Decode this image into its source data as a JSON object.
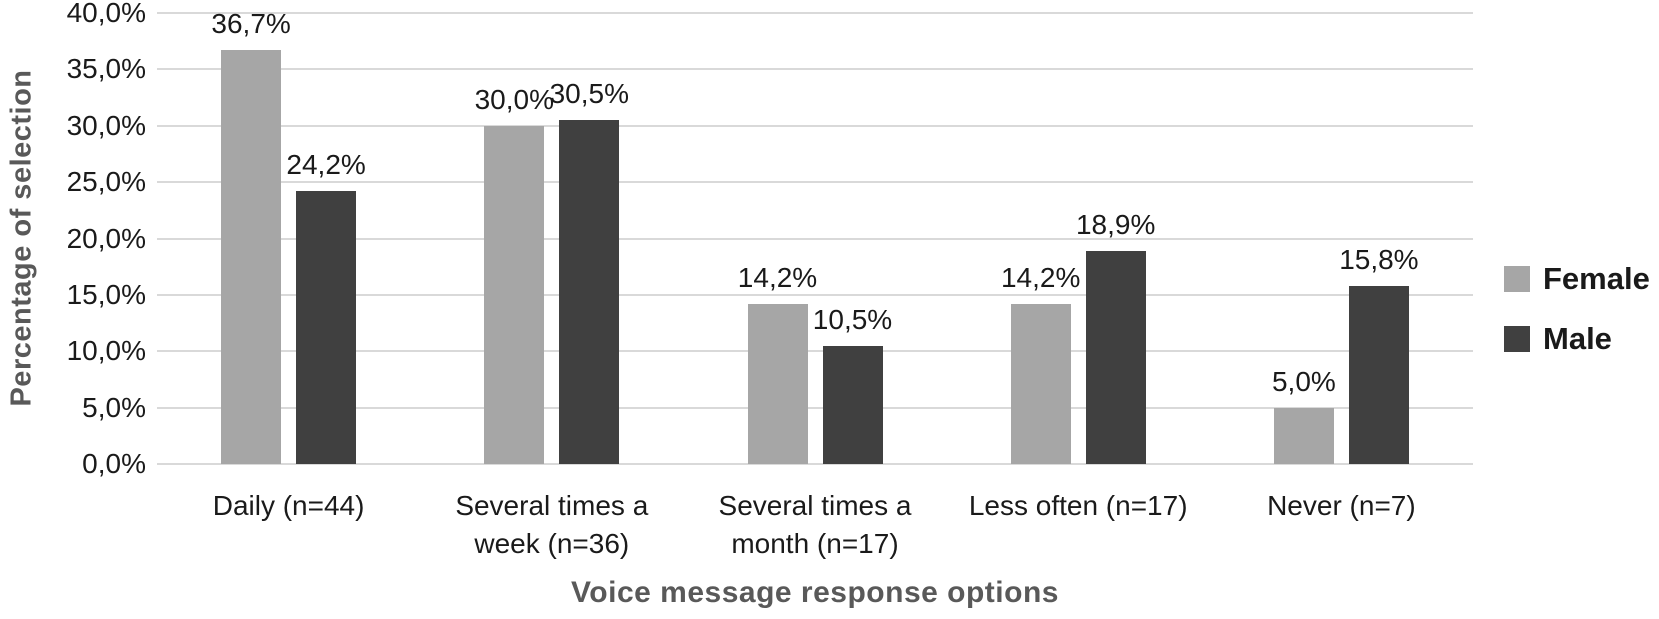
{
  "chart_data": {
    "type": "bar",
    "title": "",
    "xlabel": "Voice message response options",
    "ylabel": "Percentage of selection",
    "categories": [
      "Daily (n=44)",
      "Several times a week (n=36)",
      "Several times a month (n=17)",
      "Less often (n=17)",
      "Never (n=7)"
    ],
    "category_lines": [
      [
        "Daily (n=44)"
      ],
      [
        "Several times a",
        "week (n=36)"
      ],
      [
        "Several times a",
        "month (n=17)"
      ],
      [
        "Less often (n=17)"
      ],
      [
        "Never (n=7)"
      ]
    ],
    "series": [
      {
        "name": "Female",
        "color": "#a6a6a6",
        "values": [
          36.7,
          30.0,
          14.2,
          14.2,
          5.0
        ],
        "value_labels": [
          "36,7%",
          "30,0%",
          "14,2%",
          "14,2%",
          "5,0%"
        ]
      },
      {
        "name": "Male",
        "color": "#404040",
        "values": [
          24.2,
          30.5,
          10.5,
          18.9,
          15.8
        ],
        "value_labels": [
          "24,2%",
          "30,5%",
          "10,5%",
          "18,9%",
          "15,8%"
        ]
      }
    ],
    "ylim": [
      0,
      40
    ],
    "ytick_step": 5,
    "ytick_labels": [
      "0,0%",
      "5,0%",
      "10,0%",
      "15,0%",
      "20,0%",
      "25,0%",
      "30,0%",
      "35,0%",
      "40,0%"
    ],
    "grid": true,
    "legend_position": "right"
  },
  "style": {
    "female_color": "#a6a6a6",
    "male_color": "#404040",
    "gridline_color": "#d9d9d9",
    "axis_title_color": "#595959",
    "text_color": "#1a1a1a",
    "background": "#ffffff"
  }
}
